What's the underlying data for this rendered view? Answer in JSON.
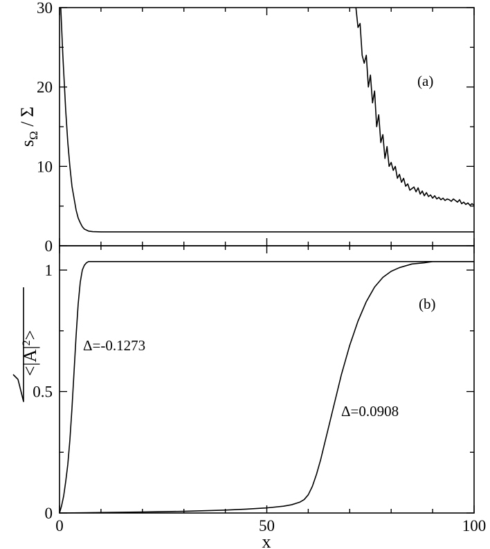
{
  "chart_data": [
    {
      "id": "a",
      "type": "line",
      "panel_label": "(a)",
      "ylabel_main": "s",
      "ylabel_sub": "Ω",
      "ylabel_rest": " / Σ",
      "xlim": [
        0,
        100
      ],
      "ylim": [
        0,
        30
      ],
      "yticks": [
        0,
        10,
        20,
        30
      ],
      "series": [
        {
          "x": [
            0.3,
            0.8,
            1.5,
            2,
            2.5,
            3,
            3.5,
            4,
            4.5,
            5,
            5.5,
            6,
            7,
            8,
            10,
            20,
            40,
            60,
            80,
            100
          ],
          "y": [
            30,
            24,
            17,
            13,
            10,
            7.5,
            6,
            4.5,
            3.5,
            2.9,
            2.4,
            2.1,
            1.85,
            1.78,
            1.75,
            1.75,
            1.75,
            1.75,
            1.75,
            1.75
          ]
        },
        {
          "x": [
            71.5,
            72,
            72.5,
            73,
            73.5,
            74,
            74.5,
            75,
            75.5,
            76,
            76.5,
            77,
            77.5,
            78,
            78.5,
            79,
            79.5,
            80,
            80.5,
            81,
            81.5,
            82,
            82.5,
            83,
            83.5,
            84,
            84.5,
            85,
            85.5,
            86,
            86.5,
            87,
            87.5,
            88,
            88.5,
            89,
            89.5,
            90,
            90.5,
            91,
            91.5,
            92,
            92.5,
            93,
            93.5,
            94,
            94.5,
            95,
            95.5,
            96,
            96.5,
            97,
            97.5,
            98,
            98.5,
            99,
            99.5,
            100
          ],
          "y": [
            30,
            27.5,
            28,
            24,
            23,
            24,
            20,
            21.5,
            18,
            19.5,
            15,
            16.5,
            13,
            14,
            11,
            12.5,
            10,
            10.5,
            9.5,
            10,
            8.5,
            9,
            8,
            8.5,
            7.5,
            7.8,
            7,
            7.2,
            7.4,
            6.8,
            7.3,
            6.5,
            6.9,
            6.3,
            6.7,
            6.2,
            6.4,
            6.0,
            6.3,
            5.9,
            6.1,
            5.8,
            6.0,
            5.7,
            5.9,
            5.8,
            5.6,
            5.9,
            5.7,
            5.5,
            5.8,
            5.3,
            5.5,
            5.2,
            5.4,
            5.1,
            5.3,
            5.1
          ]
        }
      ]
    },
    {
      "id": "b",
      "type": "line",
      "panel_label": "(b)",
      "ylabel_main": "<|A|",
      "ylabel_sup": "2",
      "ylabel_rest": ">",
      "xlabel": "x",
      "xlim": [
        0,
        100
      ],
      "ylim": [
        0,
        1.1
      ],
      "yticks": [
        0,
        0.5,
        1
      ],
      "ytick_labels": [
        "0",
        "0.5",
        "1"
      ],
      "xticks": [
        0,
        50,
        100
      ],
      "series": [
        {
          "name": "Δ=-0.1273",
          "x": [
            0,
            0.5,
            1,
            1.5,
            2,
            2.5,
            3,
            3.5,
            4,
            4.5,
            5,
            5.5,
            6,
            6.5,
            7,
            8,
            10,
            20,
            50,
            100
          ],
          "y": [
            0,
            0.03,
            0.07,
            0.13,
            0.2,
            0.3,
            0.43,
            0.58,
            0.73,
            0.86,
            0.95,
            1.0,
            1.02,
            1.03,
            1.035,
            1.035,
            1.035,
            1.035,
            1.035,
            1.035
          ]
        },
        {
          "name": "Δ=0.0908",
          "x": [
            0,
            10,
            20,
            30,
            40,
            45,
            50,
            54,
            56,
            58,
            59,
            60,
            61,
            62,
            63,
            64,
            65,
            66,
            67,
            68,
            69,
            70,
            71,
            72,
            73,
            74,
            75,
            76,
            77,
            78,
            80,
            82,
            85,
            88,
            90,
            92,
            95,
            100
          ],
          "y": [
            0,
            0.002,
            0.004,
            0.007,
            0.012,
            0.016,
            0.021,
            0.028,
            0.034,
            0.045,
            0.055,
            0.075,
            0.11,
            0.16,
            0.22,
            0.29,
            0.36,
            0.43,
            0.5,
            0.57,
            0.63,
            0.69,
            0.74,
            0.79,
            0.83,
            0.87,
            0.9,
            0.93,
            0.95,
            0.97,
            0.995,
            1.01,
            1.025,
            1.03,
            1.035,
            1.035,
            1.035,
            1.035
          ]
        }
      ]
    }
  ]
}
